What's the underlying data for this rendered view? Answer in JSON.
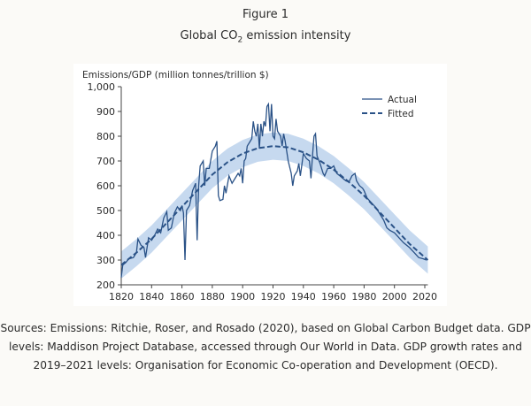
{
  "figure_label": "Figure 1",
  "title": {
    "pre": "Global CO",
    "sub": "2",
    "post": " emission intensity"
  },
  "sources": "Sources: Emissions: Ritchie, Roser, and Rosado (2020), based on Global Carbon Budget data. GDP levels: Maddison Project Database, accessed through Our World in Data. GDP growth rates and 2019–2021 levels: Organisation for Economic Co-operation and Development (OECD).",
  "colors": {
    "line": "#2a5287",
    "band": "#c6d9ef"
  },
  "chart_data": {
    "type": "line",
    "ylabel": "Emissions/GDP (million tonnes/trillion $)",
    "xlim": [
      1820,
      2022
    ],
    "ylim": [
      200,
      1000
    ],
    "xticks": [
      1820,
      1840,
      1860,
      1880,
      1900,
      1920,
      1940,
      1960,
      1980,
      2000,
      2020
    ],
    "yticks": [
      200,
      300,
      400,
      500,
      600,
      700,
      800,
      900,
      1000
    ],
    "ytick_labels": [
      "200",
      "300",
      "400",
      "500",
      "600",
      "700",
      "800",
      "900",
      "1,000"
    ],
    "grid": false,
    "legend": {
      "placement": "top-right",
      "entries": [
        "Actual",
        "Fitted"
      ]
    },
    "series": [
      {
        "name": "Actual",
        "style": "solid",
        "x": [
          1820,
          1821,
          1823,
          1825,
          1828,
          1830,
          1831,
          1833,
          1835,
          1836,
          1838,
          1840,
          1842,
          1844,
          1846,
          1848,
          1850,
          1851,
          1853,
          1855,
          1857,
          1859,
          1860,
          1861,
          1862,
          1863,
          1865,
          1867,
          1869,
          1870,
          1871,
          1872,
          1874,
          1875,
          1876,
          1878,
          1880,
          1882,
          1883,
          1884,
          1885,
          1887,
          1888,
          1889,
          1891,
          1893,
          1895,
          1897,
          1898,
          1899,
          1900,
          1901,
          1902,
          1903,
          1905,
          1906,
          1907,
          1908,
          1909,
          1910,
          1911,
          1912,
          1913,
          1914,
          1915,
          1916,
          1917,
          1918,
          1919,
          1920,
          1921,
          1922,
          1923,
          1925,
          1926,
          1927,
          1928,
          1930,
          1932,
          1933,
          1934,
          1936,
          1937,
          1938,
          1940,
          1942,
          1944,
          1945,
          1946,
          1947,
          1948,
          1949,
          1951,
          1953,
          1954,
          1956,
          1958,
          1960,
          1962,
          1964,
          1966,
          1968,
          1970,
          1972,
          1974,
          1975,
          1977,
          1979,
          1980,
          1982,
          1985,
          1988,
          1990,
          1993,
          1995,
          1997,
          2000,
          2003,
          2006,
          2010,
          2013,
          2016,
          2019,
          2021
        ],
        "y": [
          230,
          280,
          290,
          305,
          310,
          330,
          385,
          360,
          350,
          310,
          390,
          380,
          400,
          425,
          410,
          470,
          495,
          420,
          430,
          490,
          515,
          500,
          520,
          490,
          300,
          500,
          520,
          580,
          610,
          380,
          600,
          680,
          700,
          600,
          670,
          670,
          740,
          760,
          780,
          560,
          540,
          545,
          600,
          570,
          640,
          610,
          630,
          650,
          640,
          670,
          610,
          700,
          710,
          760,
          780,
          790,
          860,
          820,
          800,
          850,
          750,
          850,
          800,
          860,
          840,
          920,
          930,
          820,
          930,
          800,
          790,
          870,
          820,
          800,
          760,
          810,
          780,
          700,
          650,
          600,
          640,
          660,
          690,
          640,
          730,
          710,
          700,
          630,
          720,
          800,
          810,
          720,
          690,
          650,
          640,
          670,
          670,
          680,
          650,
          640,
          630,
          620,
          615,
          640,
          650,
          620,
          600,
          590,
          580,
          550,
          530,
          510,
          490,
          460,
          430,
          420,
          410,
          390,
          370,
          350,
          330,
          310,
          305,
          300
        ]
      },
      {
        "name": "Fitted",
        "style": "dashed",
        "x": [
          1820,
          1830,
          1840,
          1850,
          1860,
          1870,
          1880,
          1890,
          1900,
          1910,
          1920,
          1930,
          1940,
          1950,
          1960,
          1970,
          1980,
          1990,
          2000,
          2010,
          2022
        ],
        "y": [
          280,
          330,
          385,
          450,
          515,
          580,
          645,
          695,
          730,
          752,
          760,
          755,
          735,
          705,
          665,
          615,
          560,
          495,
          430,
          365,
          300
        ],
        "band": 55
      }
    ]
  }
}
